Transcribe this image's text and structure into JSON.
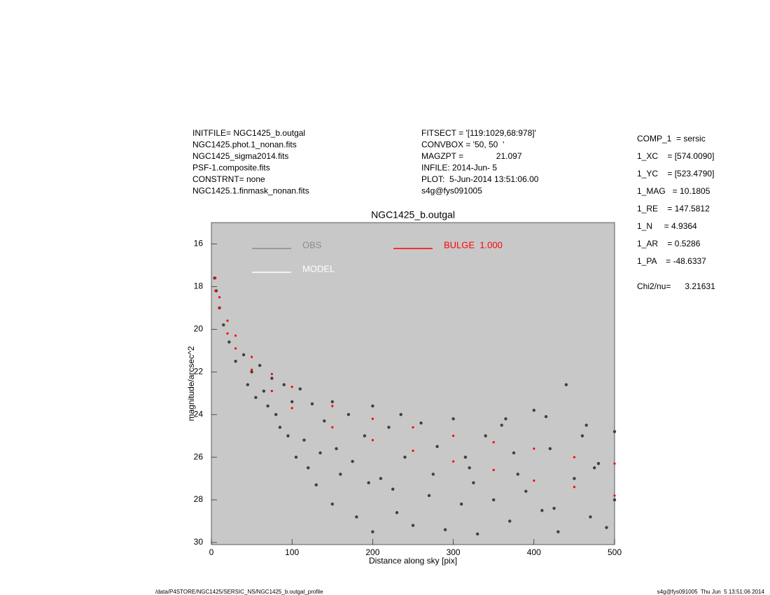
{
  "header": {
    "left": [
      "INITFILE= NGC1425_b.outgal",
      "NGC1425.phot.1_nonan.fits",
      "NGC1425_sigma2014.fits",
      "PSF-1.composite.fits",
      "CONSTRNT= none",
      "NGC1425.1.finmask_nonan.fits"
    ],
    "middle": [
      "FITSECT = '[119:1029,68:978]'",
      "CONVBOX = '50, 50  '",
      "MAGZPT =              21.097",
      "INFILE: 2014-Jun- 5",
      "PLOT:  5-Jun-2014 13:51:06.00",
      "s4g@fys091005"
    ],
    "right": [
      "COMP_1  = sersic",
      "1_XC    = [574.0090]",
      "1_YC    = [523.4790]",
      "1_MAG   = 10.1805",
      "1_RE    = 147.5812",
      "1_N     = 4.9364",
      "1_AR    = 0.5286",
      "1_PA    = -48.6337"
    ],
    "chi2": "Chi2/nu=      3.21631"
  },
  "footer": {
    "path": "/data/P4STORE/NGC1425/SERSIC_NS/NGC1425_b.outgal_profile",
    "stamp": "s4g@fys091005  Thu Jun  5 13:51:06 2014"
  },
  "chart_data": {
    "type": "scatter",
    "title": "NGC1425_b.outgal",
    "x_label": "Distance along sky [pix]",
    "y_label": "magnitude/arcsec^2",
    "xlim": [
      0,
      500
    ],
    "xticks": [
      0,
      100,
      200,
      300,
      400,
      500
    ],
    "ylim": [
      15,
      30.1
    ],
    "yticks": [
      16,
      18,
      20,
      22,
      24,
      26,
      28,
      30
    ],
    "y_inverted": true,
    "background": "#c8c8c8",
    "grid": false,
    "series": [
      {
        "name": "OBS",
        "color": "#8c8c8c",
        "point_color": "#404040",
        "x": [
          4,
          6,
          10,
          15,
          22,
          30,
          40,
          45,
          50,
          55,
          60,
          70,
          75,
          80,
          90,
          95,
          100,
          105,
          110,
          120,
          125,
          130,
          140,
          150,
          150,
          160,
          170,
          180,
          190,
          200,
          200,
          210,
          220,
          230,
          240,
          250,
          260,
          270,
          280,
          290,
          300,
          310,
          320,
          330,
          340,
          350,
          360,
          370,
          380,
          390,
          400,
          410,
          420,
          430,
          440,
          450,
          460,
          470,
          480,
          490,
          500,
          500,
          135,
          175,
          225,
          275,
          325,
          375,
          425,
          475,
          65,
          85,
          115,
          155,
          195,
          235,
          315,
          365,
          415,
          465
        ],
        "values": [
          17.6,
          18.2,
          19.0,
          19.8,
          20.6,
          21.5,
          21.2,
          22.6,
          22.0,
          23.2,
          21.7,
          23.6,
          22.3,
          24.0,
          22.6,
          25.0,
          23.4,
          26.0,
          22.8,
          26.5,
          23.5,
          27.3,
          24.3,
          28.2,
          23.4,
          26.8,
          24.0,
          28.8,
          25.0,
          29.5,
          23.6,
          27.0,
          24.6,
          28.6,
          26.0,
          29.2,
          24.4,
          27.8,
          25.5,
          29.4,
          24.2,
          28.2,
          26.5,
          29.6,
          25.0,
          28.0,
          24.5,
          29.0,
          26.8,
          27.6,
          23.8,
          28.5,
          25.6,
          29.5,
          22.6,
          27.0,
          25.0,
          28.8,
          26.3,
          29.3,
          24.8,
          28.0,
          25.8,
          26.2,
          27.5,
          26.8,
          27.2,
          25.8,
          28.4,
          26.5,
          22.9,
          24.6,
          25.2,
          25.6,
          27.2,
          24.0,
          26.0,
          24.2,
          24.1,
          24.5
        ]
      },
      {
        "name": "MODEL",
        "color": "#ffffff",
        "point_color": "#ffffff",
        "x": [],
        "values": []
      },
      {
        "name": "BULGE  1.000",
        "color": "#ff0000",
        "point_color": "#ff0000",
        "x": [
          5,
          10,
          20,
          30,
          50,
          75,
          100,
          150,
          200,
          250,
          300,
          350,
          400,
          450,
          500,
          5,
          10,
          20,
          30,
          50,
          75,
          100,
          150,
          200,
          250,
          300,
          350,
          400,
          450,
          500
        ],
        "values": [
          17.6,
          18.5,
          19.6,
          20.3,
          21.3,
          22.1,
          22.7,
          23.6,
          24.2,
          24.6,
          25.0,
          25.3,
          25.6,
          26.0,
          26.3,
          18.2,
          19.0,
          20.2,
          20.9,
          21.9,
          22.9,
          23.7,
          24.6,
          25.2,
          25.7,
          26.2,
          26.6,
          27.1,
          27.4,
          27.8
        ]
      }
    ]
  }
}
